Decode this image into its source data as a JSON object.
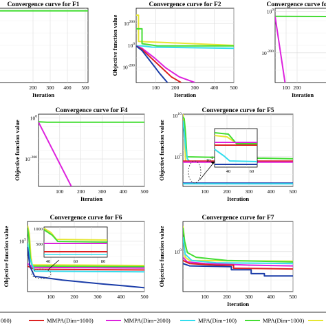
{
  "chart_data": [
    {
      "id": "F1",
      "type": "line",
      "title": "Convergence curve for F1",
      "xlabel": "Iteration",
      "ylabel": "",
      "xticks": [
        "0",
        "200",
        "300",
        "400",
        "500"
      ],
      "yticks": [],
      "xlim": [
        0,
        500
      ],
      "yscale": "log",
      "grid": true,
      "series": [
        {
          "color": "#44dd33",
          "x": [
            0,
            500
          ],
          "y": [
            0.93,
            0.93
          ]
        }
      ]
    },
    {
      "id": "F2",
      "type": "line",
      "title": "Convergence curve for F2",
      "xlabel": "Iteration",
      "ylabel": "Objective function value",
      "xticks": [
        "100",
        "200",
        "300",
        "400",
        "500"
      ],
      "yticks": [
        "10^200",
        "10^0",
        "10^-200"
      ],
      "ylog_min": -320,
      "ylog_max": 330,
      "xlim": [
        0,
        500
      ],
      "yscale": "log",
      "grid": true,
      "series": [
        {
          "color": "#e6e632",
          "x": [
            0,
            12,
            12,
            500
          ],
          "y": [
            270,
            270,
            40,
            5
          ]
        },
        {
          "color": "#44dd33",
          "x": [
            0,
            30,
            30,
            110,
            500
          ],
          "y": [
            150,
            150,
            20,
            0,
            0
          ]
        },
        {
          "color": "#33ddee",
          "x": [
            0,
            30,
            80,
            500
          ],
          "y": [
            0,
            0,
            -10,
            -20
          ]
        },
        {
          "color": "#dd22dd",
          "x": [
            0,
            30,
            90,
            150,
            220,
            300
          ],
          "y": [
            0,
            -20,
            -100,
            -190,
            -270,
            -320
          ]
        },
        {
          "color": "#dd2222",
          "x": [
            0,
            30,
            80,
            130,
            180,
            230
          ],
          "y": [
            0,
            -30,
            -110,
            -190,
            -270,
            -320
          ]
        },
        {
          "color": "#1a3ca8",
          "x": [
            0,
            30,
            80,
            120,
            160
          ],
          "y": [
            0,
            -40,
            -150,
            -240,
            -320
          ]
        }
      ]
    },
    {
      "id": "F3",
      "type": "line",
      "title": "Convergence curve for F3",
      "xlabel": "Iteration",
      "ylabel": "",
      "xticks": [
        "100",
        "200"
      ],
      "yticks": [
        "10^0",
        "10^-200"
      ],
      "ylog_min": -320,
      "ylog_max": 40,
      "xlim": [
        0,
        500
      ],
      "yscale": "log",
      "grid": true,
      "series": [
        {
          "color": "#44dd33",
          "x": [
            0,
            500
          ],
          "y": [
            1,
            0
          ]
        },
        {
          "color": "#dd22dd",
          "x": [
            0,
            90
          ],
          "y": [
            0,
            -320
          ]
        }
      ]
    },
    {
      "id": "F4",
      "type": "line",
      "title": "Convergence curve for F4",
      "xlabel": "Iteration",
      "ylabel": "Objective function value",
      "xticks": [
        "100",
        "200",
        "300",
        "400",
        "500"
      ],
      "yticks": [
        "10^0",
        "10^-200"
      ],
      "ylog_min": -320,
      "ylog_max": 40,
      "xlim": [
        0,
        500
      ],
      "yscale": "log",
      "grid": true,
      "series": [
        {
          "color": "#44dd33",
          "x": [
            0,
            40,
            500
          ],
          "y": [
            2,
            0,
            0
          ]
        },
        {
          "color": "#dd22dd",
          "x": [
            0,
            155
          ],
          "y": [
            0,
            -320
          ]
        }
      ]
    },
    {
      "id": "F5",
      "type": "line",
      "title": "Convergence curve for F5",
      "xlabel": "Iteration",
      "ylabel": "Objective function value",
      "xticks": [
        "100",
        "200",
        "300",
        "400",
        "500"
      ],
      "yticks": [
        "10^10",
        "10^5"
      ],
      "ylog_min": -1,
      "ylog_max": 10,
      "xlim": [
        0,
        500
      ],
      "yscale": "log",
      "grid": true,
      "series": [
        {
          "color": "#e6e632",
          "x": [
            0,
            4,
            8,
            12
          ],
          "y": [
            10,
            9,
            6,
            2.9
          ]
        },
        {
          "color": "#44dd33",
          "x": [
            0,
            6,
            12,
            18,
            500
          ],
          "y": [
            9.6,
            9.3,
            7,
            3.5,
            3.2
          ]
        },
        {
          "color": "#33ddee",
          "x": [
            0,
            5,
            12,
            20,
            30,
            500
          ],
          "y": [
            9,
            7.5,
            5,
            3.2,
            2.8,
            2.75
          ]
        },
        {
          "color": "#dd2222",
          "x": [
            0,
            500
          ],
          "y": [
            2.85,
            2.85
          ]
        },
        {
          "color": "#dd22dd",
          "x": [
            0,
            500
          ],
          "y": [
            2.7,
            2.7
          ]
        },
        {
          "color": "#1a3ca8",
          "x": [
            0,
            500
          ],
          "y": [
            -0.5,
            -0.5
          ]
        },
        {
          "color": "#33ddee",
          "x": [
            0,
            500
          ],
          "y": [
            -0.6,
            -0.6
          ]
        }
      ],
      "inset": {
        "xticks": [
          "40",
          "60"
        ],
        "yticks": [
          "10^-2"
        ]
      }
    },
    {
      "id": "F6",
      "type": "line",
      "title": "Convergence curve for F6",
      "xlabel": "",
      "ylabel": "Objective function value",
      "xticks": [
        "100",
        "200",
        "300",
        "400",
        "500"
      ],
      "yticks": [
        "10^5"
      ],
      "ylog_min": 1,
      "ylog_max": 6.5,
      "xlim": [
        0,
        500
      ],
      "yscale": "log",
      "grid": true,
      "series": [
        {
          "color": "#e6e632",
          "x": [
            0,
            8,
            14,
            20,
            500
          ],
          "y": [
            6.2,
            5.5,
            3.8,
            3.1,
            3.05
          ]
        },
        {
          "color": "#44dd33",
          "x": [
            0,
            6,
            12,
            20,
            500
          ],
          "y": [
            6,
            5.2,
            3.6,
            3,
            2.95
          ]
        },
        {
          "color": "#dd22dd",
          "x": [
            0,
            25,
            500
          ],
          "y": [
            3.2,
            2.9,
            2.85
          ]
        },
        {
          "color": "#dd2222",
          "x": [
            0,
            30,
            500
          ],
          "y": [
            3,
            2.75,
            2.7
          ]
        },
        {
          "color": "#33ddee",
          "x": [
            0,
            10,
            30,
            500
          ],
          "y": [
            4.8,
            3.6,
            2.6,
            2.55
          ]
        },
        {
          "color": "#1a3ca8",
          "x": [
            0,
            10,
            30,
            150,
            320,
            420,
            500
          ],
          "y": [
            4.5,
            3,
            2.2,
            1.9,
            1.6,
            1.45,
            1.3
          ]
        }
      ],
      "inset": {
        "xticks": [
          "40",
          "60",
          "80"
        ],
        "yticks": [
          "1000",
          "500"
        ]
      }
    },
    {
      "id": "F7",
      "type": "line",
      "title": "Convergence curve for F7",
      "xlabel": "Iteration",
      "ylabel": "Objective function value",
      "xticks": [
        "100",
        "200",
        "300",
        "400",
        "500"
      ],
      "yticks": [
        "10^0"
      ],
      "ylog_min": -3,
      "ylog_max": 1.5,
      "xlim": [
        0,
        500
      ],
      "yscale": "log",
      "grid": true,
      "series": [
        {
          "color": "#e6e632",
          "x": [
            0,
            5,
            10,
            30,
            500
          ],
          "y": [
            1.2,
            0.6,
            -0.8,
            -1.0,
            -1.05
          ]
        },
        {
          "color": "#44dd33",
          "x": [
            0,
            8,
            20,
            60,
            200,
            500
          ],
          "y": [
            1.1,
            0.2,
            -0.5,
            -0.8,
            -1.0,
            -1.1
          ]
        },
        {
          "color": "#33ddee",
          "x": [
            0,
            10,
            40,
            150,
            500
          ],
          "y": [
            0.5,
            -0.6,
            -1.0,
            -1.15,
            -1.2
          ]
        },
        {
          "color": "#dd22dd",
          "x": [
            0,
            20,
            100,
            300,
            500
          ],
          "y": [
            -0.8,
            -1.1,
            -1.2,
            -1.3,
            -1.35
          ]
        },
        {
          "color": "#dd2222",
          "x": [
            0,
            30,
            150,
            230,
            230,
            500
          ],
          "y": [
            -1.0,
            -1.2,
            -1.3,
            -1.3,
            -1.5,
            -1.55
          ]
        },
        {
          "color": "#1a3ca8",
          "x": [
            0,
            30,
            220,
            220,
            310,
            310,
            370,
            370,
            500
          ],
          "y": [
            -1.2,
            -1.35,
            -1.4,
            -1.6,
            -1.6,
            -1.85,
            -1.85,
            -2.0,
            -2.0
          ]
        }
      ]
    }
  ],
  "legend": {
    "items": [
      {
        "label": "000)",
        "color": "#1a3ca8"
      },
      {
        "label": "MMPA(Dim=1000)",
        "color": "#dd2222"
      },
      {
        "label": "MMPA(Dim=2000)",
        "color": "#dd22dd"
      },
      {
        "label": "MPA(Dim=100)",
        "color": "#33ddee"
      },
      {
        "label": "MPA(Dim=1000)",
        "color": "#44dd33"
      },
      {
        "label": "MI",
        "color": "#e6e632"
      }
    ]
  }
}
